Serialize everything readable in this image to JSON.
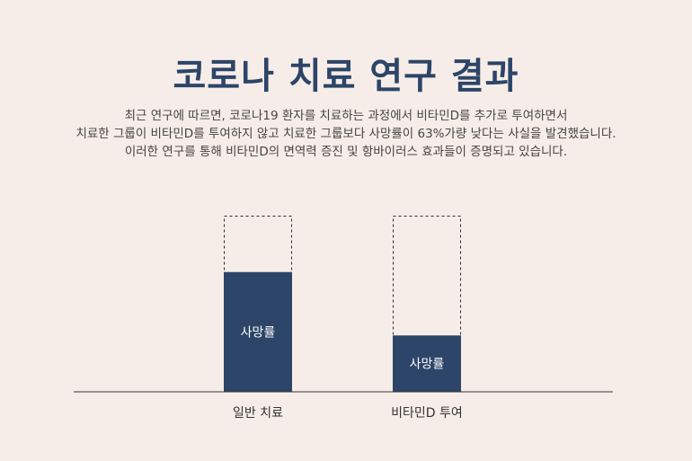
{
  "header": {
    "title": "코로나 치료 연구 결과",
    "description_lines": [
      "최근 연구에 따르면, 코로나19 환자를 치료하는 과정에서 비타민D를 추가로 투여하면서",
      "치료한 그룹이 비타민D를 투여하지 않고 치료한 그룹보다 사망률이 63%가량 낮다는 사실을 발견했습니다.",
      "이러한 연구를 통해 비타민D의 면역력 증진 및 항바이러스 효과들이 증명되고 있습니다."
    ]
  },
  "colors": {
    "background": "#f7ede8",
    "bar_fill": "#2c4568",
    "outline": "#2b2b2b",
    "axis": "#333333"
  },
  "chart_data": {
    "type": "bar",
    "categories": [
      "일반 치료",
      "비타민D 투여"
    ],
    "values": [
      0.68,
      0.32
    ],
    "value_label": "사망률",
    "ylim": [
      0,
      1
    ],
    "grid": false,
    "legend": "none"
  }
}
